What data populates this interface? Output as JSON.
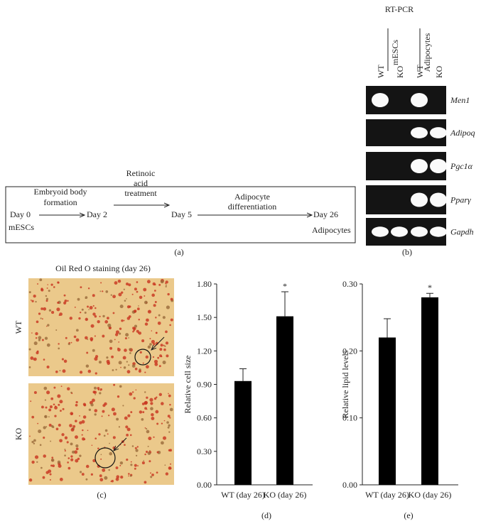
{
  "diagram": {
    "start": [
      "Day 0",
      "mESCs"
    ],
    "steps": [
      {
        "label": [
          "Embryoid body",
          "formation"
        ],
        "end": [
          "Day 2"
        ]
      },
      {
        "label": [
          "Retinoic",
          "acid",
          "treatment"
        ],
        "end": [
          "Day 5"
        ]
      },
      {
        "label": [
          "Adipocyte",
          "differentiation"
        ],
        "end": [
          "Day 26",
          "Adipocytes"
        ]
      }
    ],
    "panel": "(a)"
  },
  "gel": {
    "title": "RT-PCR",
    "lanes": [
      "WT",
      "KO",
      "WT",
      "KO"
    ],
    "groups": [
      "mESCs",
      "Adipocytes"
    ],
    "genes": [
      "Men1",
      "Adipoq",
      "Pgc1α",
      "Pparγ",
      "Gapdh"
    ],
    "panel": "(b)"
  },
  "staining": {
    "title": "Oil Red O staining (day 26)",
    "rows": [
      "WT",
      "KO"
    ],
    "panel": "(c)"
  },
  "chart_data": [
    {
      "type": "bar",
      "panel": "(d)",
      "y_label": "Relative cell size",
      "categories": [
        "WT (day 26)",
        "KO (day 26)"
      ],
      "values": [
        0.93,
        1.51
      ],
      "errors": [
        0.11,
        0.22
      ],
      "significance": [
        null,
        "*"
      ],
      "color": "#000000",
      "ylim": [
        0,
        1.8
      ],
      "yticks": [
        {
          "value": 0,
          "label": "0.00"
        },
        {
          "value": 0.3,
          "label": "0.30"
        },
        {
          "value": 0.6,
          "label": "0.60"
        },
        {
          "value": 0.9,
          "label": "0.90"
        },
        {
          "value": 1.2,
          "label": "1.20"
        },
        {
          "value": 1.5,
          "label": "1.50"
        },
        {
          "value": 1.8,
          "label": "1.80"
        }
      ]
    },
    {
      "type": "bar",
      "panel": "(e)",
      "y_label": "Relative lipid levels",
      "categories": [
        "WT (day 26)",
        "KO (day 26)"
      ],
      "values": [
        0.22,
        0.28
      ],
      "errors": [
        0.028,
        0.006
      ],
      "significance": [
        null,
        "*"
      ],
      "color": "#000000",
      "ylim": [
        0,
        0.3
      ],
      "yticks": [
        {
          "value": 0,
          "label": "0.00"
        },
        {
          "value": 0.1,
          "label": "0.10"
        },
        {
          "value": 0.2,
          "label": "0.20"
        },
        {
          "value": 0.3,
          "label": "0.30"
        }
      ]
    }
  ]
}
